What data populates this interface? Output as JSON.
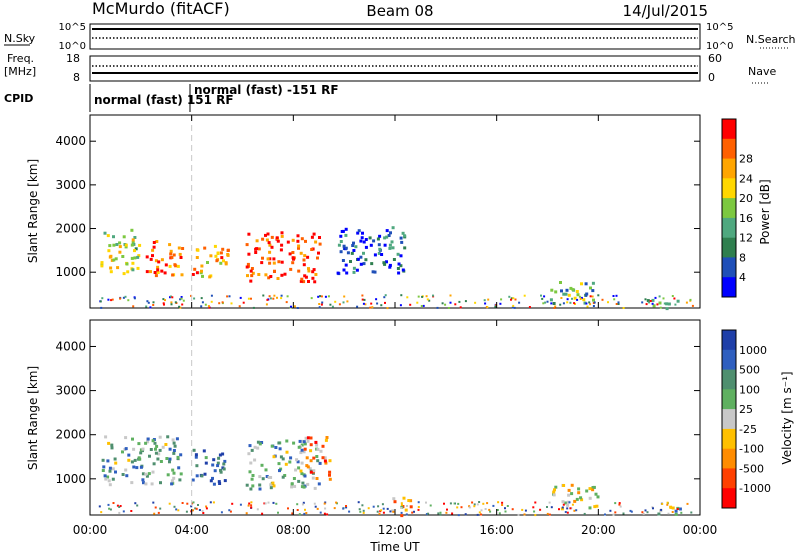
{
  "header": {
    "station": "McMurdo (fitACF)",
    "beam": "Beam 08",
    "date": "14/Jul/2015"
  },
  "noise_panel": {
    "left_label": "N.Sky",
    "left_ticks": [
      "10^5",
      "10^0"
    ],
    "right_ticks": [
      "10^5",
      "10^0"
    ],
    "right_label": "N.Search"
  },
  "freq_panel": {
    "left_label": "Freq.",
    "left_unit": "[MHz]",
    "left_ticks": [
      "18",
      "8"
    ],
    "right_ticks": [
      "60",
      "0"
    ],
    "right_label": "Nave"
  },
  "cpid_panel": {
    "label": "CPID",
    "segments": [
      "normal (fast) 151 RF",
      "normal (fast) -151 RF"
    ]
  },
  "chart_data": [
    {
      "type": "heatmap",
      "ylabel": "Slant Range [km]",
      "y_ticks": [
        "1000",
        "2000",
        "3000",
        "4000"
      ],
      "ylim": [
        180,
        4600
      ],
      "x_ticks": [
        "00:00",
        "04:00",
        "08:00",
        "12:00",
        "16:00",
        "20:00",
        "00:00"
      ],
      "xlim": [
        0,
        24
      ],
      "colorbar_label": "Power [dB]",
      "colorbar_ticks": [
        "4",
        "8",
        "12",
        "16",
        "20",
        "24",
        "28"
      ],
      "colorbar_colors": [
        "#0000ff",
        "#1f4fb8",
        "#2f7f4f",
        "#4fa87f",
        "#7cc840",
        "#ffd700",
        "#ffa500",
        "#ff6000",
        "#ff0000"
      ],
      "clusters": [
        {
          "t0": 0.4,
          "t1": 1.9,
          "r0": 900,
          "r1": 2000,
          "level": 0.55
        },
        {
          "t0": 2.0,
          "t1": 3.6,
          "r0": 950,
          "r1": 1750,
          "level": 0.8
        },
        {
          "t0": 4.0,
          "t1": 5.4,
          "r0": 900,
          "r1": 1700,
          "level": 0.7
        },
        {
          "t0": 6.1,
          "t1": 9.0,
          "r0": 800,
          "r1": 1950,
          "level": 0.9
        },
        {
          "t0": 9.7,
          "t1": 12.5,
          "r0": 1000,
          "r1": 2100,
          "level": 0.2
        },
        {
          "t0": 18.0,
          "t1": 19.8,
          "r0": 300,
          "r1": 800,
          "level": 0.4
        },
        {
          "t0": 21.8,
          "t1": 23.2,
          "r0": 200,
          "r1": 400,
          "level": 0.35
        }
      ]
    },
    {
      "type": "heatmap",
      "ylabel": "Slant Range [km]",
      "y_ticks": [
        "1000",
        "2000",
        "3000",
        "4000"
      ],
      "ylim": [
        180,
        4600
      ],
      "x_ticks": [
        "00:00",
        "04:00",
        "08:00",
        "12:00",
        "16:00",
        "20:00",
        "00:00"
      ],
      "xlim": [
        0,
        24
      ],
      "xlabel": "Time UT",
      "colorbar_label": "Velocity [m s⁻¹]",
      "colorbar_ticks": [
        "1000",
        "500",
        "100",
        "25",
        "-25",
        "-100",
        "-500",
        "-1000"
      ],
      "colorbar_colors": [
        "#1f3fa8",
        "#2f5fbf",
        "#4f8f6f",
        "#5fb060",
        "#c8c8c8",
        "#ffc000",
        "#ff8c00",
        "#ff4000",
        "#ff0000"
      ],
      "clusters": [
        {
          "t0": 0.4,
          "t1": 3.6,
          "r0": 900,
          "r1": 2000,
          "level": 0.35
        },
        {
          "t0": 4.0,
          "t1": 5.4,
          "r0": 900,
          "r1": 1700,
          "level": 0.15
        },
        {
          "t0": 6.1,
          "t1": 9.0,
          "r0": 800,
          "r1": 1900,
          "level": 0.35
        },
        {
          "t0": 8.4,
          "t1": 9.4,
          "r0": 900,
          "r1": 2000,
          "level": 0.7
        },
        {
          "t0": 11.6,
          "t1": 12.6,
          "r0": 200,
          "r1": 600,
          "level": 0.65
        },
        {
          "t0": 18.0,
          "t1": 20.0,
          "r0": 300,
          "r1": 900,
          "level": 0.55
        },
        {
          "t0": 21.8,
          "t1": 23.2,
          "r0": 200,
          "r1": 400,
          "level": 0.4
        }
      ]
    }
  ]
}
